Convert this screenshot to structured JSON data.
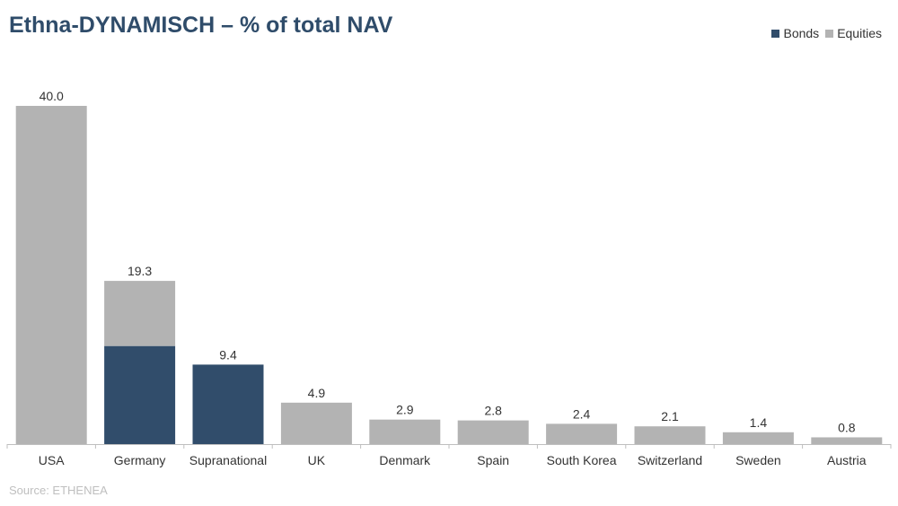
{
  "title": "Ethna-DYNAMISCH – % of total NAV",
  "source": "Source: ETHENEA",
  "colors": {
    "bonds": "#314d6b",
    "equities": "#b3b3b3",
    "axis": "#bfbfbf",
    "title": "#2f4c6a"
  },
  "chart_data": {
    "type": "bar",
    "stacked": true,
    "title": "Ethna-DYNAMISCH – % of total NAV",
    "xlabel": "",
    "ylabel": "",
    "ylim": [
      0,
      40
    ],
    "grid": false,
    "legend_position": "top-right",
    "categories": [
      "USA",
      "Germany",
      "Supranational",
      "UK",
      "Denmark",
      "Spain",
      "South Korea",
      "Switzerland",
      "Sweden",
      "Austria"
    ],
    "series": [
      {
        "name": "Bonds",
        "color": "#314d6b",
        "values": [
          0,
          11.6,
          9.4,
          0,
          0,
          0,
          0,
          0,
          0,
          0
        ]
      },
      {
        "name": "Equities",
        "color": "#b3b3b3",
        "values": [
          40.0,
          7.7,
          0,
          4.9,
          2.9,
          2.8,
          2.4,
          2.1,
          1.4,
          0.8
        ]
      }
    ],
    "totals": [
      "40.0",
      "19.3",
      "9.4",
      "4.9",
      "2.9",
      "2.8",
      "2.4",
      "2.1",
      "1.4",
      "0.8"
    ]
  }
}
